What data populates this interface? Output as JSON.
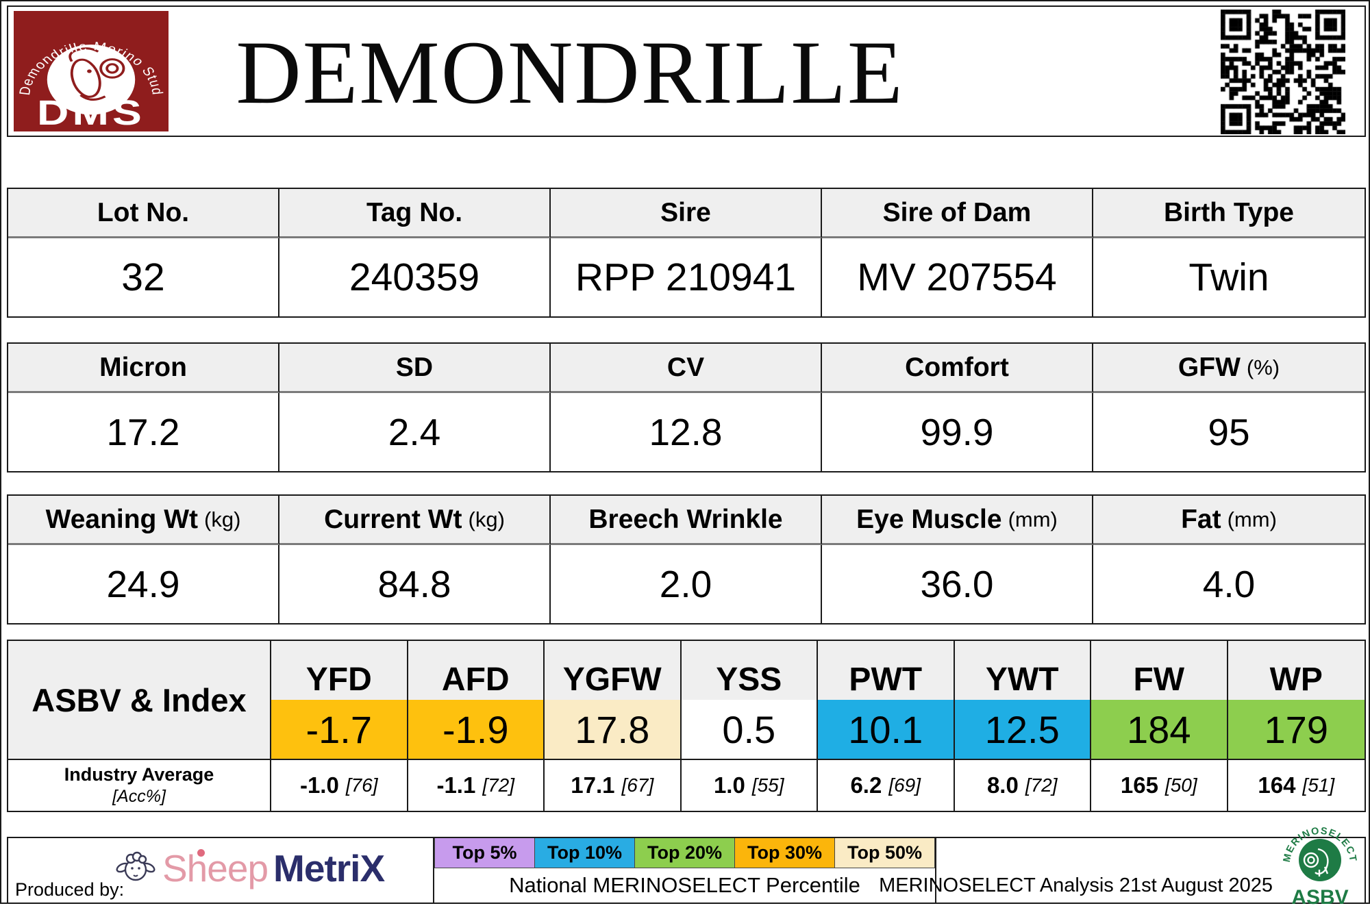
{
  "header": {
    "title": "DEMONDRILLE",
    "stud_logo": {
      "arc_text": "Demondrille Merino Stud",
      "acronym": "DMS"
    }
  },
  "tables": {
    "identity": {
      "headers": [
        {
          "label": "Lot No.",
          "unit": ""
        },
        {
          "label": "Tag No.",
          "unit": ""
        },
        {
          "label": "Sire",
          "unit": ""
        },
        {
          "label": "Sire of Dam",
          "unit": ""
        },
        {
          "label": "Birth Type",
          "unit": ""
        }
      ],
      "values": [
        "32",
        "240359",
        "RPP 210941",
        "MV 207554",
        "Twin"
      ]
    },
    "wool": {
      "headers": [
        {
          "label": "Micron",
          "unit": ""
        },
        {
          "label": "SD",
          "unit": ""
        },
        {
          "label": "CV",
          "unit": ""
        },
        {
          "label": "Comfort",
          "unit": ""
        },
        {
          "label": "GFW",
          "unit": "(%)"
        }
      ],
      "values": [
        "17.2",
        "2.4",
        "12.8",
        "99.9",
        "95"
      ]
    },
    "body": {
      "headers": [
        {
          "label": "Weaning Wt",
          "unit": "(kg)"
        },
        {
          "label": "Current Wt",
          "unit": "(kg)"
        },
        {
          "label": "Breech Wrinkle",
          "unit": ""
        },
        {
          "label": "Eye Muscle",
          "unit": "(mm)"
        },
        {
          "label": "Fat",
          "unit": "(mm)"
        }
      ],
      "values": [
        "24.9",
        "84.8",
        "2.0",
        "36.0",
        "4.0"
      ]
    }
  },
  "asbv": {
    "row_label": "ASBV & Index",
    "industry_label": "Industry Average",
    "industry_sub": "[Acc%]",
    "columns": [
      {
        "trait": "YFD",
        "value": "-1.7",
        "cell_color": "#FEC10E",
        "industry": "-1.0",
        "acc": "[76]"
      },
      {
        "trait": "AFD",
        "value": "-1.9",
        "cell_color": "#FEC10E",
        "industry": "-1.1",
        "acc": "[72]"
      },
      {
        "trait": "YGFW",
        "value": "17.8",
        "cell_color": "#FAEBC5",
        "industry": "17.1",
        "acc": "[67]"
      },
      {
        "trait": "YSS",
        "value": "0.5",
        "cell_color": "#FFFFFF",
        "industry": "1.0",
        "acc": "[55]"
      },
      {
        "trait": "PWT",
        "value": "10.1",
        "cell_color": "#1FAEE4",
        "industry": "6.2",
        "acc": "[69]"
      },
      {
        "trait": "YWT",
        "value": "12.5",
        "cell_color": "#1FAEE4",
        "industry": "8.0",
        "acc": "[72]"
      },
      {
        "trait": "FW",
        "value": "184",
        "cell_color": "#8DCE4E",
        "industry": "165",
        "acc": "[50]"
      },
      {
        "trait": "WP",
        "value": "179",
        "cell_color": "#8DCE4E",
        "industry": "164",
        "acc": "[51]"
      }
    ]
  },
  "footer": {
    "produced_by": "Produced by:",
    "sheepmetrix": {
      "part1": "Sheep",
      "part2": "MetriX"
    },
    "legend": [
      {
        "label": "Top 5%",
        "color": "#C79BED"
      },
      {
        "label": "Top 10%",
        "color": "#29ACE3"
      },
      {
        "label": "Top 20%",
        "color": "#8DCE4E"
      },
      {
        "label": "Top 30%",
        "color": "#FBB50B"
      },
      {
        "label": "Top 50%",
        "color": "#FAEBC5"
      }
    ],
    "legend_caption": "National MERINOSELECT Percentile",
    "analysis_note": "MERINOSELECT Analysis 21st August 2025",
    "merinoselect_logo": {
      "arc_text": "MERINOSELECT",
      "label": "ASBV"
    }
  },
  "colors": {
    "header_cell_bg": "#EFEFEF",
    "stud_logo_red": "#8F1D1D",
    "sheepmetrix_pink": "#E39AA7",
    "sheepmetrix_navy": "#2B2E6B",
    "merinoselect_green": "#1E7B45"
  }
}
